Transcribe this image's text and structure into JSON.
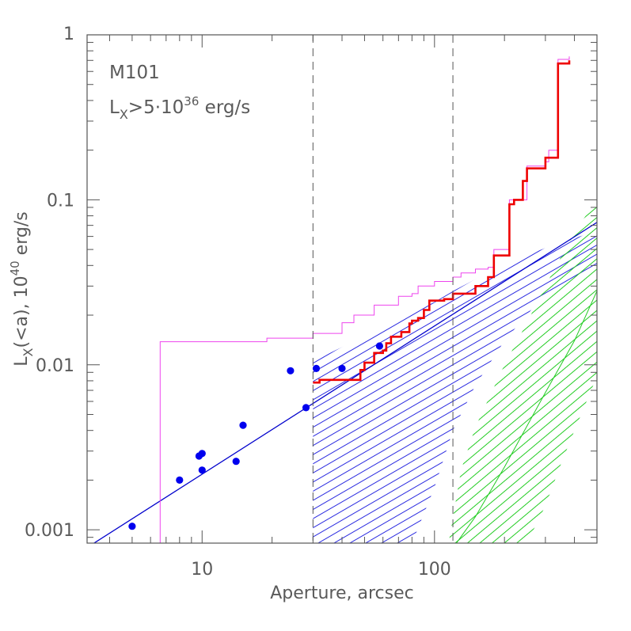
{
  "chart_data": {
    "type": "scatter",
    "xlabel": "Aperture, arcsec",
    "ylabel_parts": {
      "main": "L",
      "sub": "X",
      "rest": "(<a), 10",
      "sup": "40",
      "unit": " erg/s"
    },
    "x_scale": "log",
    "y_scale": "log",
    "xlim": [
      3.2,
      500
    ],
    "ylim": [
      0.00083,
      1
    ],
    "x_ticks": [
      {
        "value": 10,
        "label": "10"
      },
      {
        "value": 100,
        "label": "100"
      }
    ],
    "y_ticks": [
      {
        "value": 0.001,
        "label": "0.001"
      },
      {
        "value": 0.01,
        "label": "0.01"
      },
      {
        "value": 0.1,
        "label": "0.1"
      },
      {
        "value": 1,
        "label": "1"
      }
    ],
    "annotations": {
      "galaxy": "M101",
      "limit_main": "L",
      "limit_sub": "X",
      "limit_mid": ">5·10",
      "limit_sup": "36",
      "limit_unit": " erg/s"
    },
    "vertical_lines": [
      30,
      120
    ],
    "colors": {
      "points": "#0000ee",
      "model_line": "#0000cc",
      "blue_band": "#2a2ae0",
      "green_band": "#22cc22",
      "red_step": "#ee0000",
      "magenta_step": "#ee44ee",
      "dashed": "#555555",
      "axis": "#555555"
    },
    "series": [
      {
        "kind": "points",
        "x": [
          5,
          8,
          9.7,
          10,
          10,
          14,
          15,
          24,
          28,
          31,
          40,
          58
        ],
        "y": [
          0.00105,
          0.002,
          0.0028,
          0.0029,
          0.0023,
          0.0026,
          0.0043,
          0.0092,
          0.0055,
          0.0095,
          0.0095,
          0.013
        ]
      },
      {
        "kind": "line",
        "x": [
          3.2,
          500
        ],
        "y": [
          0.00078,
          0.073
        ]
      },
      {
        "kind": "band",
        "color_key": "blue_band",
        "x": [
          30,
          40,
          50,
          60,
          70,
          80,
          100,
          120,
          150,
          200,
          300,
          500
        ],
        "lo": [
          0.00083,
          0.00083,
          0.00083,
          0.00083,
          0.00083,
          0.00083,
          0.0018,
          0.004,
          0.0075,
          0.014,
          0.027,
          0.04
        ],
        "hi": [
          0.0105,
          0.0128,
          0.0148,
          0.0168,
          0.019,
          0.021,
          0.024,
          0.028,
          0.033,
          0.041,
          0.051,
          0.065
        ]
      },
      {
        "kind": "band",
        "color_key": "green_band",
        "x": [
          115,
          130,
          150,
          200,
          250,
          300,
          350,
          400,
          500
        ],
        "lo": [
          0.00083,
          0.00083,
          0.00083,
          0.00083,
          0.00083,
          0.0014,
          0.0025,
          0.004,
          0.0085
        ],
        "hi": [
          0.00083,
          0.0023,
          0.0042,
          0.01,
          0.018,
          0.03,
          0.045,
          0.064,
          0.1
        ]
      },
      {
        "kind": "line",
        "color_key": "green_band",
        "x": [
          118,
          150,
          200,
          300,
          400,
          500
        ],
        "y": [
          0.00075,
          0.0012,
          0.0024,
          0.0068,
          0.014,
          0.028
        ]
      },
      {
        "kind": "step",
        "color_key": "magenta_step",
        "x": [
          6.6,
          19,
          30,
          40,
          45,
          55,
          70,
          80,
          85,
          100,
          120,
          130,
          150,
          170,
          180,
          200,
          210,
          250,
          300,
          310,
          340,
          380
        ],
        "y": [
          0.0138,
          0.0145,
          0.0155,
          0.018,
          0.02,
          0.023,
          0.026,
          0.027,
          0.03,
          0.032,
          0.034,
          0.036,
          0.038,
          0.039,
          0.05,
          0.05,
          0.1,
          0.16,
          0.17,
          0.2,
          0.71,
          0.74
        ]
      },
      {
        "kind": "step",
        "color_key": "red_step",
        "x": [
          30,
          32,
          48,
          50,
          55,
          60,
          62,
          65,
          72,
          78,
          80,
          85,
          90,
          95,
          105,
          110,
          120,
          150,
          170,
          180,
          210,
          220,
          240,
          250,
          300,
          340,
          380
        ],
        "y": [
          0.0078,
          0.0081,
          0.0093,
          0.0103,
          0.0118,
          0.0122,
          0.0135,
          0.0148,
          0.0158,
          0.0178,
          0.0185,
          0.0192,
          0.0215,
          0.0245,
          0.0245,
          0.025,
          0.027,
          0.03,
          0.034,
          0.046,
          0.094,
          0.1,
          0.13,
          0.155,
          0.18,
          0.67,
          0.7
        ]
      }
    ]
  }
}
